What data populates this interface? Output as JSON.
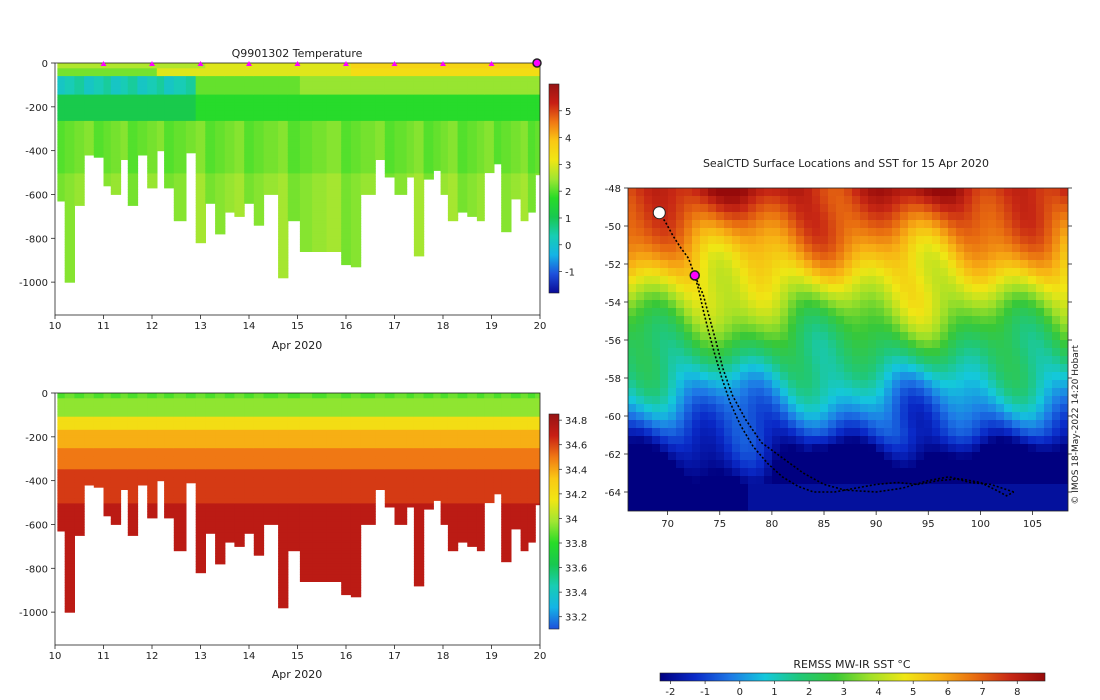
{
  "colors": {
    "temp_scale": [
      "#0a0a96",
      "#1e50dc",
      "#14b4e6",
      "#18cdb4",
      "#18c850",
      "#28dc28",
      "#a0e632",
      "#f0e614",
      "#fac814",
      "#f07814",
      "#c81e14",
      "#961414"
    ],
    "sst_scale": [
      "#000080",
      "#0a2ac8",
      "#1e78e6",
      "#14c8dc",
      "#20c878",
      "#38c838",
      "#a0e028",
      "#f0e614",
      "#f8b014",
      "#e86c10",
      "#c82814",
      "#960a0a"
    ],
    "marker": "#ff00ff",
    "track": "#000000"
  },
  "chart_data": [
    {
      "id": "temperature",
      "type": "heatmap",
      "title": "Q9901302  Temperature",
      "xlabel": "Apr 2020",
      "x_ticks": [
        "10",
        "11",
        "12",
        "13",
        "14",
        "15",
        "16",
        "17",
        "18",
        "19",
        "20"
      ],
      "xlim": [
        10,
        20
      ],
      "ylim": [
        -1150,
        0
      ],
      "y_ticks": [
        "0",
        "-200",
        "-400",
        "-600",
        "-800",
        "-1000"
      ],
      "y_tick_values": [
        0,
        -200,
        -400,
        -600,
        -800,
        -1000
      ],
      "colorbar": {
        "ticks": [
          "-1",
          "0",
          "1",
          "2",
          "3",
          "4",
          "5"
        ],
        "range": [
          -1.8,
          6.0
        ]
      },
      "surface_markers_x": [
        11,
        12,
        13,
        14,
        15,
        16,
        17,
        18,
        19
      ],
      "current_marker_x": 20,
      "profiles": [
        {
          "x": 10.05,
          "depth": 630
        },
        {
          "x": 10.2,
          "depth": 1000
        },
        {
          "x": 10.4,
          "depth": 650
        },
        {
          "x": 10.6,
          "depth": 420
        },
        {
          "x": 10.8,
          "depth": 430
        },
        {
          "x": 11.0,
          "depth": 560
        },
        {
          "x": 11.15,
          "depth": 600
        },
        {
          "x": 11.35,
          "depth": 440
        },
        {
          "x": 11.5,
          "depth": 650
        },
        {
          "x": 11.7,
          "depth": 420
        },
        {
          "x": 11.9,
          "depth": 570
        },
        {
          "x": 12.1,
          "depth": 400
        },
        {
          "x": 12.25,
          "depth": 570
        },
        {
          "x": 12.45,
          "depth": 720
        },
        {
          "x": 12.7,
          "depth": 410
        },
        {
          "x": 12.9,
          "depth": 820
        },
        {
          "x": 13.1,
          "depth": 640
        },
        {
          "x": 13.3,
          "depth": 780
        },
        {
          "x": 13.5,
          "depth": 680
        },
        {
          "x": 13.7,
          "depth": 700
        },
        {
          "x": 13.9,
          "depth": 640
        },
        {
          "x": 14.1,
          "depth": 740
        },
        {
          "x": 14.3,
          "depth": 600
        },
        {
          "x": 14.6,
          "depth": 980
        },
        {
          "x": 14.8,
          "depth": 720
        },
        {
          "x": 15.05,
          "depth": 860
        },
        {
          "x": 15.3,
          "depth": 860
        },
        {
          "x": 15.6,
          "depth": 860
        },
        {
          "x": 15.9,
          "depth": 920
        },
        {
          "x": 16.1,
          "depth": 930
        },
        {
          "x": 16.3,
          "depth": 600
        },
        {
          "x": 16.6,
          "depth": 440
        },
        {
          "x": 16.8,
          "depth": 520
        },
        {
          "x": 17.0,
          "depth": 600
        },
        {
          "x": 17.25,
          "depth": 520
        },
        {
          "x": 17.4,
          "depth": 880
        },
        {
          "x": 17.6,
          "depth": 530
        },
        {
          "x": 17.8,
          "depth": 490
        },
        {
          "x": 17.95,
          "depth": 600
        },
        {
          "x": 18.1,
          "depth": 720
        },
        {
          "x": 18.3,
          "depth": 680
        },
        {
          "x": 18.5,
          "depth": 700
        },
        {
          "x": 18.7,
          "depth": 720
        },
        {
          "x": 18.85,
          "depth": 500
        },
        {
          "x": 19.05,
          "depth": 460
        },
        {
          "x": 19.2,
          "depth": 770
        },
        {
          "x": 19.4,
          "depth": 620
        },
        {
          "x": 19.6,
          "depth": 720
        },
        {
          "x": 19.75,
          "depth": 680
        },
        {
          "x": 19.9,
          "depth": 510
        },
        {
          "x": 20.0,
          "depth": 460
        }
      ]
    },
    {
      "id": "salinity",
      "type": "heatmap",
      "title": "",
      "xlabel": "Apr 2020",
      "x_ticks": [
        "10",
        "11",
        "12",
        "13",
        "14",
        "15",
        "16",
        "17",
        "18",
        "19",
        "20"
      ],
      "xlim": [
        10,
        20
      ],
      "ylim": [
        -1150,
        0
      ],
      "y_ticks": [
        "0",
        "-200",
        "-400",
        "-600",
        "-800",
        "-1000"
      ],
      "y_tick_values": [
        0,
        -200,
        -400,
        -600,
        -800,
        -1000
      ],
      "colorbar": {
        "ticks": [
          "33.2",
          "33.4",
          "33.6",
          "33.8",
          "34",
          "34.2",
          "34.4",
          "34.6",
          "34.8"
        ],
        "range": [
          33.1,
          34.85
        ]
      }
    },
    {
      "id": "sst_map",
      "type": "heatmap",
      "title": "SealCTD Surface Locations and SST for 15 Apr 2020",
      "xlabel": "",
      "x_ticks": [
        "70",
        "75",
        "80",
        "85",
        "90",
        "95",
        "100",
        "105"
      ],
      "x_tick_values": [
        70,
        75,
        80,
        85,
        90,
        95,
        100,
        105
      ],
      "y_ticks": [
        "-48",
        "-50",
        "-52",
        "-54",
        "-56",
        "-58",
        "-60",
        "-62",
        "-64"
      ],
      "y_tick_values": [
        -48,
        -50,
        -52,
        -54,
        -56,
        -58,
        -60,
        -62,
        -64
      ],
      "xlim": [
        66.2,
        108.4
      ],
      "ylim": [
        -65.0,
        -48.0
      ],
      "colorbar_label": "REMSS MW-IR SST °C",
      "colorbar": {
        "ticks": [
          "-2",
          "-1",
          "0",
          "1",
          "2",
          "3",
          "4",
          "5",
          "6",
          "7",
          "8"
        ],
        "range": [
          -2.3,
          8.8
        ]
      },
      "start_location": [
        69.2,
        -49.3
      ],
      "current_location": [
        72.6,
        -52.6
      ],
      "track": [
        [
          69.2,
          -49.3
        ],
        [
          69.8,
          -49.8
        ],
        [
          70.5,
          -50.5
        ],
        [
          71.2,
          -51.1
        ],
        [
          72.0,
          -51.7
        ],
        [
          72.6,
          -52.6
        ],
        [
          73.0,
          -53.4
        ],
        [
          73.4,
          -54.4
        ],
        [
          73.9,
          -55.5
        ],
        [
          74.5,
          -56.7
        ],
        [
          75.2,
          -58.0
        ],
        [
          76.0,
          -59.3
        ],
        [
          77.0,
          -60.5
        ],
        [
          78.2,
          -61.6
        ],
        [
          79.6,
          -62.5
        ],
        [
          81.0,
          -63.2
        ],
        [
          82.5,
          -63.7
        ],
        [
          84.0,
          -64.0
        ],
        [
          86.0,
          -64.0
        ],
        [
          88.0,
          -63.8
        ],
        [
          90.0,
          -63.6
        ],
        [
          92.0,
          -63.5
        ],
        [
          94.0,
          -63.6
        ],
        [
          96.0,
          -63.4
        ],
        [
          98.0,
          -63.3
        ],
        [
          100.0,
          -63.5
        ],
        [
          101.5,
          -63.9
        ],
        [
          102.5,
          -64.2
        ],
        [
          103.2,
          -64.0
        ]
      ],
      "track_return": [
        [
          103.2,
          -64.0
        ],
        [
          101.0,
          -63.6
        ],
        [
          99.0,
          -63.5
        ],
        [
          97.0,
          -63.2
        ],
        [
          95.0,
          -63.4
        ],
        [
          92.5,
          -63.8
        ],
        [
          90.0,
          -64.0
        ],
        [
          87.0,
          -63.9
        ],
        [
          85.0,
          -63.6
        ],
        [
          83.0,
          -63.0
        ],
        [
          81.0,
          -62.2
        ],
        [
          79.0,
          -61.4
        ],
        [
          77.5,
          -60.2
        ],
        [
          76.2,
          -58.9
        ],
        [
          75.3,
          -57.5
        ],
        [
          74.6,
          -56.0
        ],
        [
          74.0,
          -54.8
        ],
        [
          73.4,
          -53.6
        ],
        [
          72.6,
          -52.6
        ]
      ]
    }
  ],
  "credit": "© IMOS 18-May-2022 14:20 Hobart"
}
